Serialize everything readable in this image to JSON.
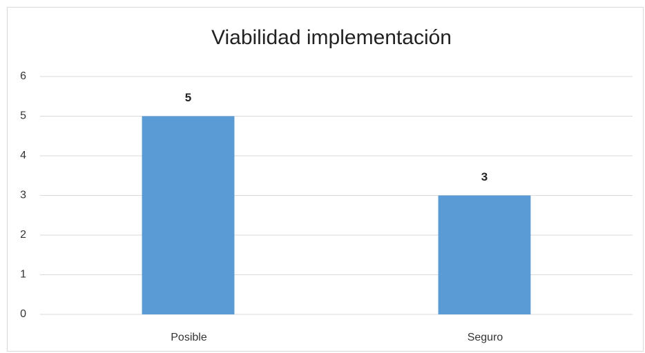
{
  "chart_data": {
    "type": "bar",
    "title": "Viabilidad implementación",
    "categories": [
      "Posible",
      "Seguro"
    ],
    "values": [
      5,
      3
    ],
    "color": "#5b9bd5",
    "ylim": [
      0,
      6
    ],
    "yticks": [
      0,
      1,
      2,
      3,
      4,
      5,
      6
    ],
    "grid": true
  }
}
